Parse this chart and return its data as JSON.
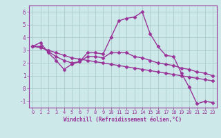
{
  "xlabel": "Windchill (Refroidissement éolien,°C)",
  "line_color": "#993399",
  "bg_color": "#cce8e8",
  "grid_color": "#aacccc",
  "xlim": [
    -0.5,
    23.5
  ],
  "ylim": [
    -1.5,
    6.5
  ],
  "xticks": [
    0,
    1,
    2,
    3,
    4,
    5,
    6,
    7,
    8,
    9,
    10,
    11,
    12,
    13,
    14,
    15,
    16,
    17,
    18,
    19,
    20,
    21,
    22,
    23
  ],
  "yticks": [
    -1,
    0,
    1,
    2,
    3,
    4,
    5,
    6
  ],
  "line1_x": [
    0,
    1,
    2,
    3,
    4,
    5,
    6,
    7,
    8,
    9,
    10,
    11,
    12,
    13,
    14,
    15,
    16,
    17,
    18,
    19,
    20,
    21,
    22,
    23
  ],
  "line1_y": [
    3.3,
    3.6,
    2.8,
    2.2,
    1.5,
    1.9,
    2.1,
    2.8,
    2.8,
    2.7,
    4.0,
    5.3,
    5.5,
    5.6,
    6.0,
    4.3,
    3.3,
    2.6,
    2.5,
    1.2,
    0.1,
    -1.2,
    -1.0,
    -1.1
  ],
  "line2_x": [
    0,
    1,
    2,
    3,
    4,
    5,
    6,
    7,
    8,
    9,
    10,
    11,
    12,
    13,
    14,
    15,
    16,
    17,
    18,
    19,
    20,
    21,
    22,
    23
  ],
  "line2_y": [
    3.3,
    3.3,
    2.9,
    2.5,
    2.2,
    2.0,
    2.1,
    2.5,
    2.5,
    2.4,
    2.8,
    2.8,
    2.8,
    2.5,
    2.4,
    2.2,
    2.0,
    1.9,
    1.8,
    1.6,
    1.5,
    1.3,
    1.2,
    1.0
  ],
  "line3_x": [
    0,
    1,
    2,
    3,
    4,
    5,
    6,
    7,
    8,
    9,
    10,
    11,
    12,
    13,
    14,
    15,
    16,
    17,
    18,
    19,
    20,
    21,
    22,
    23
  ],
  "line3_y": [
    3.3,
    3.2,
    3.0,
    2.8,
    2.6,
    2.4,
    2.3,
    2.2,
    2.1,
    2.0,
    1.9,
    1.8,
    1.7,
    1.6,
    1.5,
    1.4,
    1.3,
    1.2,
    1.1,
    1.0,
    0.9,
    0.8,
    0.7,
    0.6
  ],
  "marker": "D",
  "marker_size": 2.5,
  "line_width": 1.0,
  "tick_fontsize": 5.0,
  "xlabel_fontsize": 5.5
}
